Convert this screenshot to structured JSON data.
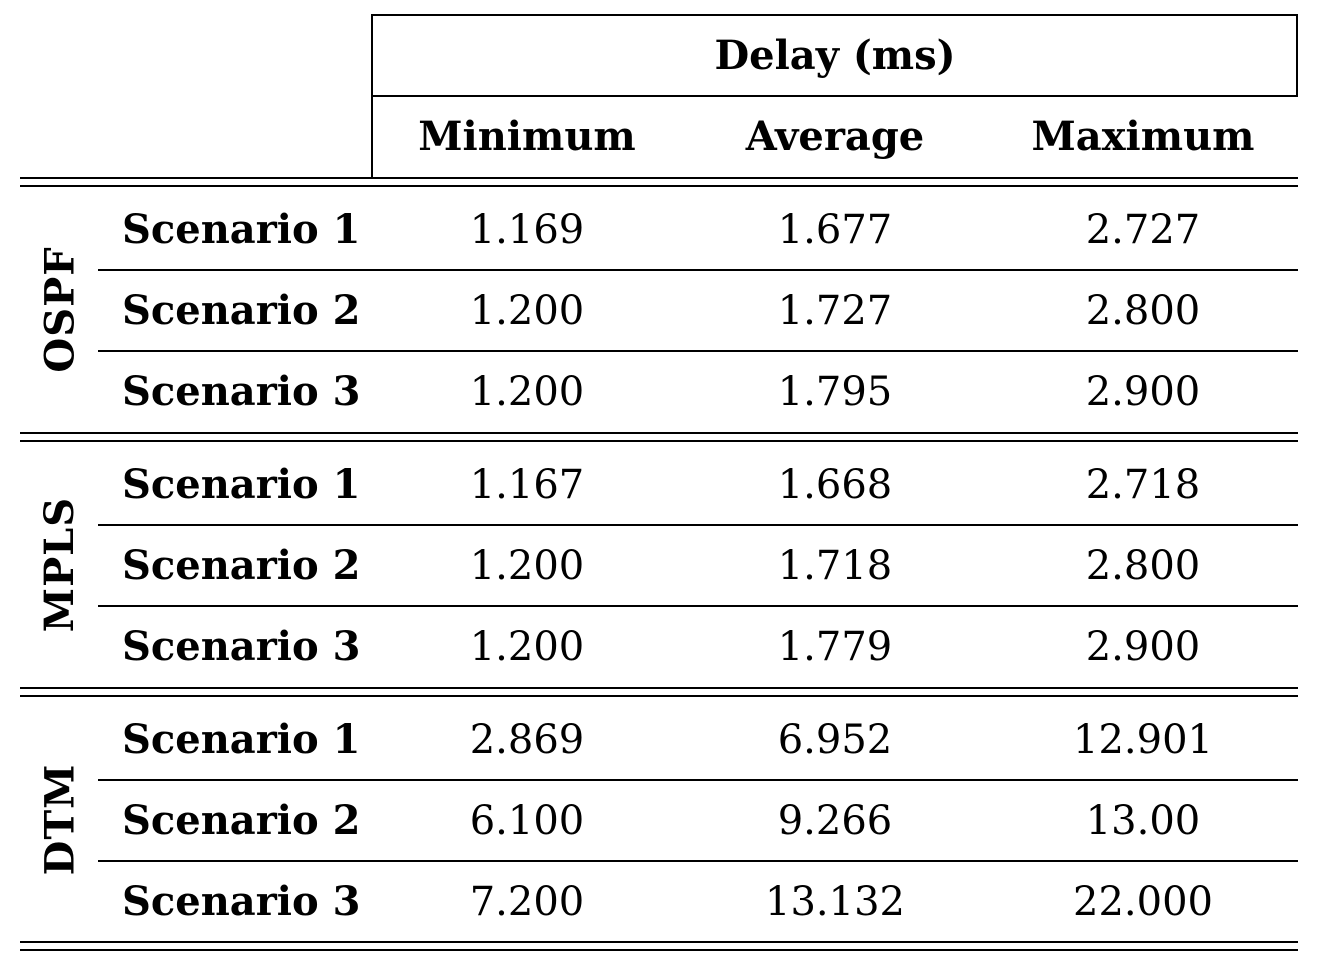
{
  "table": {
    "super_header": "Delay (ms)",
    "columns": [
      "Minimum",
      "Average",
      "Maximum"
    ],
    "groups": [
      {
        "label": "OSPF",
        "rows": [
          {
            "label": "Scenario 1",
            "values": [
              "1.169",
              "1.677",
              "2.727"
            ]
          },
          {
            "label": "Scenario 2",
            "values": [
              "1.200",
              "1.727",
              "2.800"
            ]
          },
          {
            "label": "Scenario 3",
            "values": [
              "1.200",
              "1.795",
              "2.900"
            ]
          }
        ]
      },
      {
        "label": "MPLS",
        "rows": [
          {
            "label": "Scenario 1",
            "values": [
              "1.167",
              "1.668",
              "2.718"
            ]
          },
          {
            "label": "Scenario 2",
            "values": [
              "1.200",
              "1.718",
              "2.800"
            ]
          },
          {
            "label": "Scenario 3",
            "values": [
              "1.200",
              "1.779",
              "2.900"
            ]
          }
        ]
      },
      {
        "label": "DTM",
        "rows": [
          {
            "label": "Scenario 1",
            "values": [
              "2.869",
              "6.952",
              "12.901"
            ]
          },
          {
            "label": "Scenario 2",
            "values": [
              "6.100",
              "9.266",
              "13.00"
            ]
          },
          {
            "label": "Scenario 3",
            "values": [
              "7.200",
              "13.132",
              "22.000"
            ]
          }
        ]
      }
    ]
  }
}
